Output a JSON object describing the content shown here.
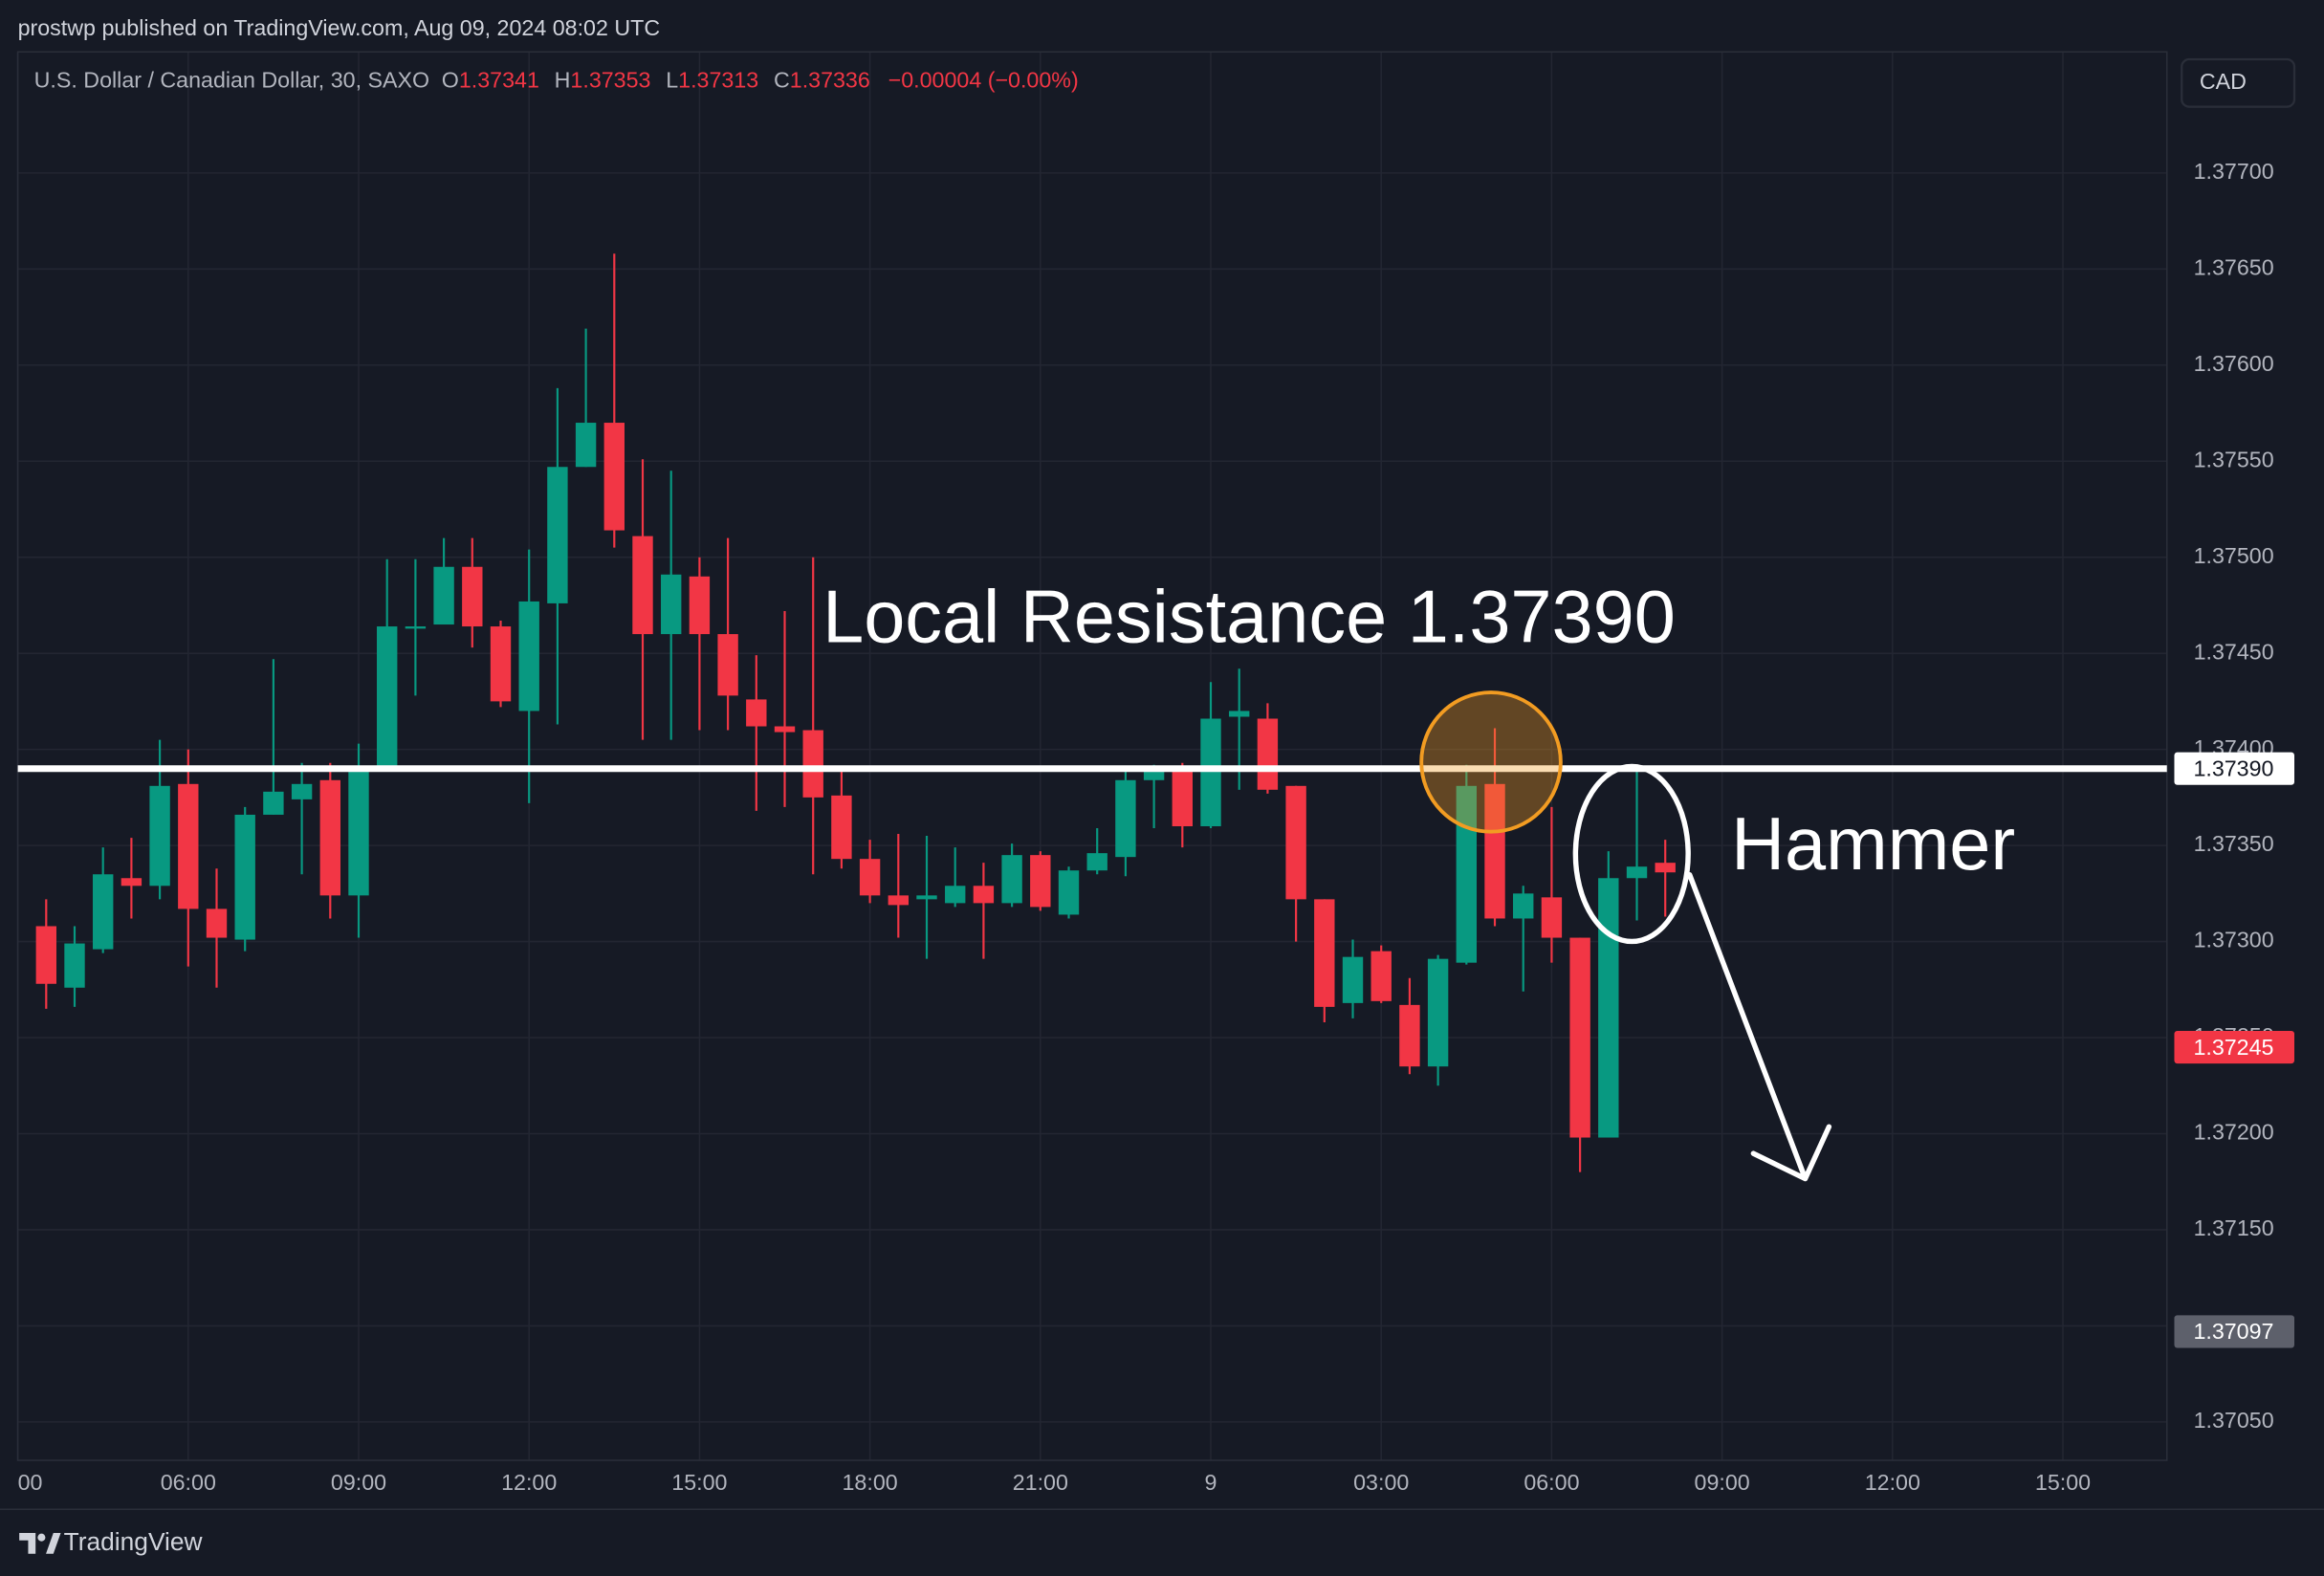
{
  "header": {
    "publisher": "prostwp published on TradingView.com, Aug 09, 2024 08:02 UTC",
    "symbol": "U.S. Dollar / Canadian Dollar, 30, SAXO",
    "ohlc": [
      {
        "key": "O",
        "value": "1.37341"
      },
      {
        "key": "H",
        "value": "1.37353"
      },
      {
        "key": "L",
        "value": "1.37313"
      },
      {
        "key": "C",
        "value": "1.37336"
      }
    ],
    "change": "−0.00004 (−0.00%)",
    "currency": "CAD"
  },
  "footer": {
    "brand": "TradingView"
  },
  "chart_data": {
    "type": "candlestick",
    "up_color": "#089981",
    "down_color": "#f23645",
    "x": [
      3.5,
      4,
      4.5,
      5,
      5.5,
      6,
      6.5,
      7,
      7.5,
      8,
      8.5,
      9,
      9.5,
      10,
      10.5,
      11,
      11.5,
      12,
      12.5,
      13,
      13.5,
      14,
      14.5,
      15,
      15.5,
      16,
      16.5,
      17,
      17.5,
      18,
      18.5,
      19,
      19.5,
      20,
      20.5,
      21,
      21.5,
      22,
      22.5,
      23,
      23.5,
      24,
      24.5,
      25,
      25.5,
      26,
      26.5,
      27,
      27.5,
      28,
      28.5,
      29,
      29.5,
      30,
      30.5,
      31,
      31.5,
      32
    ],
    "open": [
      1.37308,
      1.37276,
      1.37296,
      1.37333,
      1.37329,
      1.37382,
      1.37317,
      1.37301,
      1.37366,
      1.37374,
      1.37384,
      1.37324,
      1.3739,
      1.37463,
      1.37465,
      1.37495,
      1.37464,
      1.3742,
      1.37476,
      1.37547,
      1.3757,
      1.37511,
      1.3746,
      1.3749,
      1.3746,
      1.37426,
      1.37412,
      1.3741,
      1.37376,
      1.37343,
      1.37324,
      1.37322,
      1.3732,
      1.37329,
      1.3732,
      1.37345,
      1.37314,
      1.37337,
      1.37344,
      1.37384,
      1.37389,
      1.3736,
      1.37417,
      1.37416,
      1.37381,
      1.37322,
      1.37268,
      1.37295,
      1.37267,
      1.37235,
      1.37289,
      1.37382,
      1.37312,
      1.37323,
      1.37302,
      1.37198,
      1.37333,
      1.37341
    ],
    "high": [
      1.37322,
      1.37308,
      1.37349,
      1.37354,
      1.37405,
      1.374,
      1.37338,
      1.3737,
      1.37447,
      1.37393,
      1.37393,
      1.37403,
      1.37499,
      1.37499,
      1.3751,
      1.3751,
      1.37467,
      1.37504,
      1.37588,
      1.37619,
      1.37658,
      1.37551,
      1.37545,
      1.375,
      1.3751,
      1.37449,
      1.37472,
      1.375,
      1.37389,
      1.37353,
      1.37356,
      1.37355,
      1.37349,
      1.37341,
      1.37351,
      1.37347,
      1.37339,
      1.37359,
      1.37389,
      1.37392,
      1.37393,
      1.37435,
      1.37442,
      1.37424,
      1.37381,
      1.37322,
      1.37301,
      1.37298,
      1.37281,
      1.37293,
      1.37392,
      1.37411,
      1.37329,
      1.3737,
      1.37302,
      1.37347,
      1.37392,
      1.37353
    ],
    "low": [
      1.37265,
      1.37266,
      1.37294,
      1.37312,
      1.37322,
      1.37287,
      1.37276,
      1.37295,
      1.37366,
      1.37335,
      1.37312,
      1.37302,
      1.37389,
      1.37428,
      1.37465,
      1.37453,
      1.37422,
      1.37372,
      1.37413,
      1.37547,
      1.37505,
      1.37405,
      1.37405,
      1.3741,
      1.3741,
      1.37368,
      1.3737,
      1.37335,
      1.37338,
      1.3732,
      1.37302,
      1.37291,
      1.37318,
      1.37291,
      1.37318,
      1.37316,
      1.37312,
      1.37335,
      1.37334,
      1.37359,
      1.37349,
      1.37359,
      1.37379,
      1.37377,
      1.373,
      1.37258,
      1.3726,
      1.37268,
      1.37231,
      1.37225,
      1.37288,
      1.37308,
      1.37274,
      1.37289,
      1.3718,
      1.37198,
      1.37311,
      1.37313
    ],
    "close": [
      1.37278,
      1.37299,
      1.37335,
      1.37329,
      1.37381,
      1.37317,
      1.37302,
      1.37366,
      1.37378,
      1.37382,
      1.37324,
      1.37389,
      1.37464,
      1.37464,
      1.37495,
      1.37464,
      1.37425,
      1.37477,
      1.37547,
      1.3757,
      1.37514,
      1.3746,
      1.37491,
      1.3746,
      1.37428,
      1.37412,
      1.37409,
      1.37375,
      1.37343,
      1.37324,
      1.37319,
      1.37324,
      1.37329,
      1.3732,
      1.37345,
      1.37318,
      1.37337,
      1.37346,
      1.37384,
      1.37389,
      1.3736,
      1.37416,
      1.3742,
      1.37379,
      1.37322,
      1.37266,
      1.37292,
      1.37269,
      1.37235,
      1.37291,
      1.37381,
      1.37312,
      1.37325,
      1.37302,
      1.37198,
      1.37333,
      1.37339,
      1.37336
    ],
    "xlim": [
      3,
      40.83
    ],
    "xticks": [
      {
        "value": 3,
        "label": "00"
      },
      {
        "value": 6,
        "label": "06:00"
      },
      {
        "value": 9,
        "label": "09:00"
      },
      {
        "value": 12,
        "label": "12:00"
      },
      {
        "value": 15,
        "label": "15:00"
      },
      {
        "value": 18,
        "label": "18:00"
      },
      {
        "value": 21,
        "label": "21:00"
      },
      {
        "value": 24,
        "label": "9"
      },
      {
        "value": 27,
        "label": "03:00"
      },
      {
        "value": 30,
        "label": "06:00"
      },
      {
        "value": 33,
        "label": "09:00"
      },
      {
        "value": 36,
        "label": "12:00"
      },
      {
        "value": 39,
        "label": "15:00"
      }
    ],
    "ylim": [
      1.3703,
      1.37763
    ],
    "yticks": [
      {
        "value": 1.3705,
        "label": "1.37050"
      },
      {
        "value": 1.371,
        "label": "1.37100"
      },
      {
        "value": 1.3715,
        "label": "1.37150"
      },
      {
        "value": 1.372,
        "label": "1.37200"
      },
      {
        "value": 1.3725,
        "label": "1.37250"
      },
      {
        "value": 1.373,
        "label": "1.37300"
      },
      {
        "value": 1.3735,
        "label": "1.37350"
      },
      {
        "value": 1.374,
        "label": "1.37400"
      },
      {
        "value": 1.3745,
        "label": "1.37450"
      },
      {
        "value": 1.375,
        "label": "1.37500"
      },
      {
        "value": 1.3755,
        "label": "1.37550"
      },
      {
        "value": 1.376,
        "label": "1.37600"
      },
      {
        "value": 1.3765,
        "label": "1.37650"
      },
      {
        "value": 1.377,
        "label": "1.37700"
      }
    ],
    "grid": true,
    "resistance_line": {
      "value": 1.3739,
      "color": "#ffffff"
    },
    "price_tags": [
      {
        "value": 1.3739,
        "label": "1.37390",
        "color": "#ffffff",
        "text_color": "#131722"
      },
      {
        "value": 1.37245,
        "label": "1.37245",
        "color": "#f23645",
        "text_color": "#ffffff"
      },
      {
        "value": 1.37097,
        "label": "1.37097",
        "color": "#5d606b",
        "text_color": "#ffffff"
      }
    ],
    "annotations": [
      {
        "text": "Local Resistance 1.37390"
      },
      {
        "text": "Hammer"
      }
    ]
  }
}
